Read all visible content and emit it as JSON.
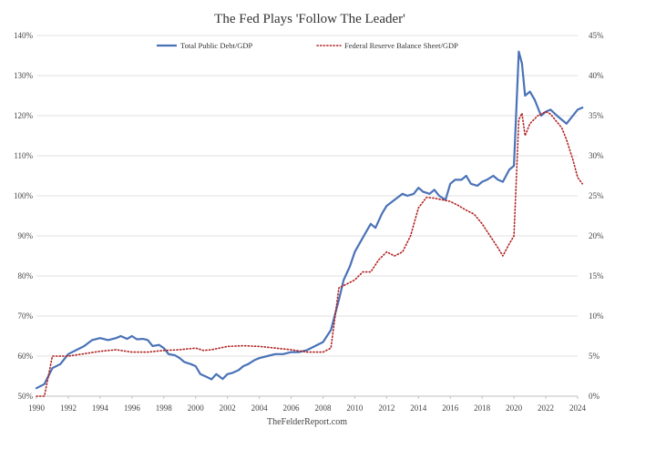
{
  "chart_data": {
    "type": "line",
    "title": "The Fed Plays 'Follow The Leader'",
    "source": "TheFelderReport.com",
    "x_ticks": [
      "1990",
      "1992",
      "1994",
      "1996",
      "1998",
      "2000",
      "2002",
      "2004",
      "2006",
      "2008",
      "2010",
      "2012",
      "2014",
      "2016",
      "2018",
      "2020",
      "2022",
      "2024"
    ],
    "xlim": [
      1990,
      2024
    ],
    "y_left": {
      "ylim": [
        50,
        140
      ],
      "ticks": [
        "50%",
        "60%",
        "70%",
        "80%",
        "90%",
        "100%",
        "110%",
        "120%",
        "130%",
        "140%"
      ]
    },
    "y_right": {
      "ylim": [
        0,
        45
      ],
      "ticks": [
        "0%",
        "5%",
        "10%",
        "15%",
        "20%",
        "25%",
        "30%",
        "35%",
        "40%",
        "45%"
      ]
    },
    "grid": "horizontal",
    "legend_position": "top-center",
    "series": [
      {
        "name": "Total Public Debt/GDP",
        "axis": "left",
        "color": "#4a72b8",
        "style": "solid",
        "points": [
          [
            1990.0,
            52
          ],
          [
            1990.5,
            53
          ],
          [
            1991.0,
            57
          ],
          [
            1991.5,
            58
          ],
          [
            1992.0,
            60.5
          ],
          [
            1992.5,
            61.5
          ],
          [
            1993.0,
            62.5
          ],
          [
            1993.5,
            64
          ],
          [
            1994.0,
            64.5
          ],
          [
            1994.5,
            64
          ],
          [
            1995.0,
            64.5
          ],
          [
            1995.3,
            65
          ],
          [
            1995.7,
            64.3
          ],
          [
            1996.0,
            65
          ],
          [
            1996.3,
            64.2
          ],
          [
            1996.7,
            64.3
          ],
          [
            1997.0,
            64
          ],
          [
            1997.3,
            62.5
          ],
          [
            1997.7,
            62.8
          ],
          [
            1998.0,
            62
          ],
          [
            1998.3,
            60.5
          ],
          [
            1998.7,
            60.2
          ],
          [
            1999.0,
            59.5
          ],
          [
            1999.3,
            58.5
          ],
          [
            1999.7,
            58
          ],
          [
            2000.0,
            57.5
          ],
          [
            2000.3,
            55.5
          ],
          [
            2000.7,
            54.8
          ],
          [
            2001.0,
            54.2
          ],
          [
            2001.3,
            55.5
          ],
          [
            2001.7,
            54.3
          ],
          [
            2002.0,
            55.5
          ],
          [
            2002.3,
            55.8
          ],
          [
            2002.7,
            56.5
          ],
          [
            2003.0,
            57.5
          ],
          [
            2003.3,
            58
          ],
          [
            2003.7,
            59
          ],
          [
            2004.0,
            59.5
          ],
          [
            2004.5,
            60
          ],
          [
            2005.0,
            60.5
          ],
          [
            2005.5,
            60.5
          ],
          [
            2006.0,
            61
          ],
          [
            2006.5,
            61
          ],
          [
            2007.0,
            61.5
          ],
          [
            2007.5,
            62.5
          ],
          [
            2008.0,
            63.5
          ],
          [
            2008.5,
            66.5
          ],
          [
            2009.0,
            74
          ],
          [
            2009.3,
            79
          ],
          [
            2009.7,
            82.5
          ],
          [
            2010.0,
            86
          ],
          [
            2010.5,
            89.5
          ],
          [
            2011.0,
            93
          ],
          [
            2011.3,
            92
          ],
          [
            2011.7,
            95.5
          ],
          [
            2012.0,
            97.5
          ],
          [
            2012.5,
            99
          ],
          [
            2013.0,
            100.5
          ],
          [
            2013.3,
            100
          ],
          [
            2013.7,
            100.5
          ],
          [
            2014.0,
            102
          ],
          [
            2014.3,
            101
          ],
          [
            2014.7,
            100.5
          ],
          [
            2015.0,
            101.5
          ],
          [
            2015.3,
            100
          ],
          [
            2015.7,
            99
          ],
          [
            2016.0,
            103
          ],
          [
            2016.3,
            104
          ],
          [
            2016.7,
            104
          ],
          [
            2017.0,
            105
          ],
          [
            2017.3,
            103
          ],
          [
            2017.7,
            102.5
          ],
          [
            2018.0,
            103.5
          ],
          [
            2018.3,
            104
          ],
          [
            2018.7,
            105
          ],
          [
            2019.0,
            104
          ],
          [
            2019.3,
            103.5
          ],
          [
            2019.7,
            106.5
          ],
          [
            2020.0,
            107.5
          ],
          [
            2020.3,
            136
          ],
          [
            2020.5,
            133
          ],
          [
            2020.7,
            125
          ],
          [
            2021.0,
            126
          ],
          [
            2021.3,
            124
          ],
          [
            2021.7,
            120
          ],
          [
            2022.0,
            121
          ],
          [
            2022.3,
            121.5
          ],
          [
            2022.7,
            120
          ],
          [
            2023.0,
            119
          ],
          [
            2023.3,
            118
          ],
          [
            2023.7,
            120
          ],
          [
            2024.0,
            121.5
          ],
          [
            2024.3,
            122
          ]
        ]
      },
      {
        "name": "Federal Reserve Balance Sheet/GDP",
        "axis": "right",
        "color": "#b22222",
        "style": "dotted",
        "points": [
          [
            1990.0,
            0
          ],
          [
            1990.5,
            0
          ],
          [
            1991.0,
            5
          ],
          [
            1991.5,
            5
          ],
          [
            1992.0,
            5
          ],
          [
            1993.0,
            5.3
          ],
          [
            1994.0,
            5.6
          ],
          [
            1995.0,
            5.8
          ],
          [
            1996.0,
            5.5
          ],
          [
            1997.0,
            5.5
          ],
          [
            1998.0,
            5.7
          ],
          [
            1999.0,
            5.8
          ],
          [
            2000.0,
            6
          ],
          [
            2000.5,
            5.7
          ],
          [
            2001.0,
            5.8
          ],
          [
            2002.0,
            6.2
          ],
          [
            2003.0,
            6.3
          ],
          [
            2004.0,
            6.2
          ],
          [
            2005.0,
            6
          ],
          [
            2006.0,
            5.8
          ],
          [
            2007.0,
            5.5
          ],
          [
            2008.0,
            5.5
          ],
          [
            2008.5,
            6
          ],
          [
            2009.0,
            13.5
          ],
          [
            2009.5,
            14
          ],
          [
            2010.0,
            14.5
          ],
          [
            2010.5,
            15.5
          ],
          [
            2011.0,
            15.5
          ],
          [
            2011.5,
            17
          ],
          [
            2012.0,
            18
          ],
          [
            2012.5,
            17.5
          ],
          [
            2013.0,
            18
          ],
          [
            2013.5,
            20
          ],
          [
            2014.0,
            23.5
          ],
          [
            2014.5,
            24.8
          ],
          [
            2015.0,
            24.7
          ],
          [
            2015.5,
            24.5
          ],
          [
            2016.0,
            24.3
          ],
          [
            2016.5,
            23.8
          ],
          [
            2017.0,
            23.2
          ],
          [
            2017.5,
            22.7
          ],
          [
            2018.0,
            21.5
          ],
          [
            2018.5,
            20
          ],
          [
            2019.0,
            18.5
          ],
          [
            2019.3,
            17.5
          ],
          [
            2019.7,
            19
          ],
          [
            2020.0,
            20
          ],
          [
            2020.3,
            34.5
          ],
          [
            2020.5,
            35.3
          ],
          [
            2020.7,
            32.5
          ],
          [
            2021.0,
            34
          ],
          [
            2021.5,
            35
          ],
          [
            2022.0,
            35.5
          ],
          [
            2022.3,
            35.2
          ],
          [
            2022.7,
            34.2
          ],
          [
            2023.0,
            33.5
          ],
          [
            2023.3,
            32
          ],
          [
            2023.7,
            29.5
          ],
          [
            2024.0,
            27.3
          ],
          [
            2024.3,
            26.5
          ]
        ]
      }
    ]
  }
}
